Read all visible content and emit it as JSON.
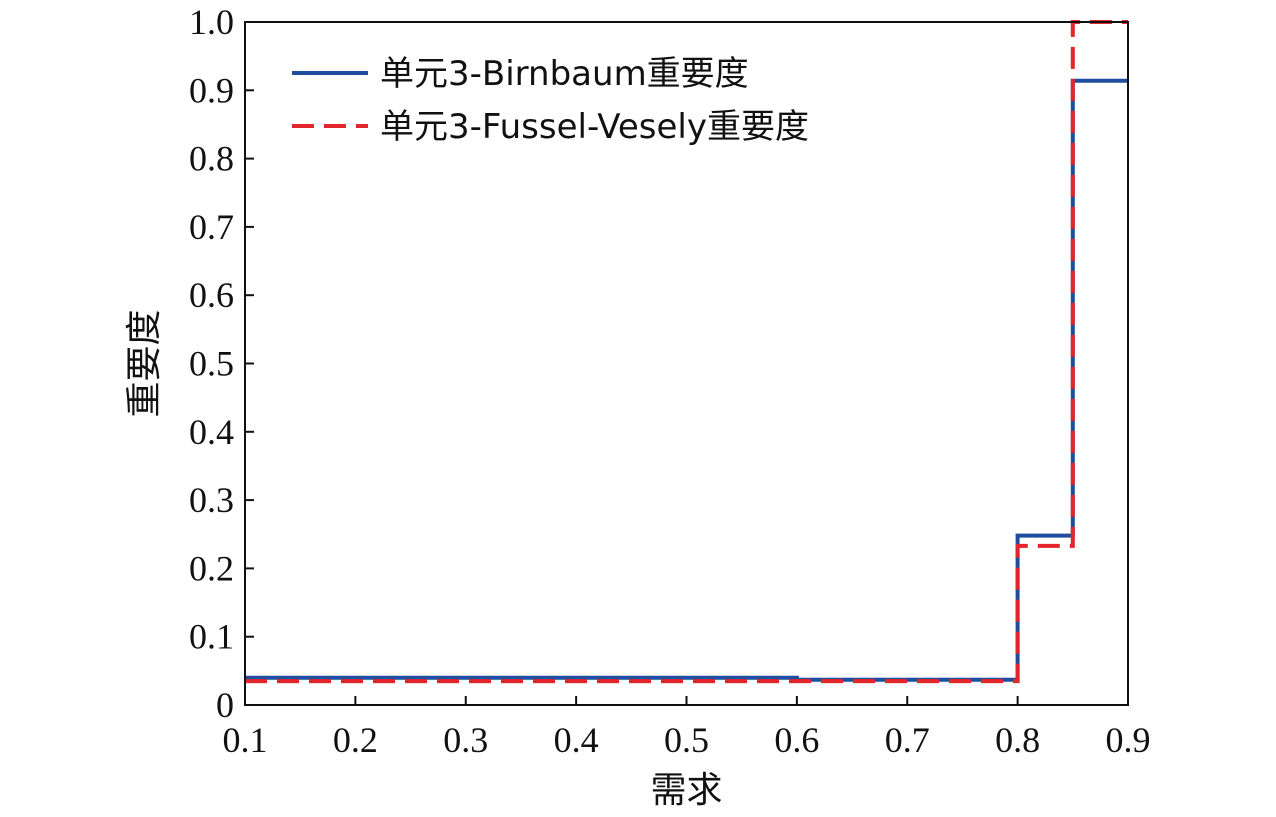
{
  "chart_data": {
    "type": "line",
    "xlabel": "需求",
    "ylabel": "重要度",
    "xlim": [
      0.1,
      0.9
    ],
    "ylim": [
      0,
      1.0
    ],
    "x_ticks": [
      "0.1",
      "0.2",
      "0.3",
      "0.4",
      "0.5",
      "0.6",
      "0.7",
      "0.8",
      "0.9"
    ],
    "y_ticks": [
      "0",
      "0.1",
      "0.2",
      "0.3",
      "0.4",
      "0.5",
      "0.6",
      "0.7",
      "0.8",
      "0.9",
      "1.0"
    ],
    "grid": false,
    "legend_position": "top-left",
    "series": [
      {
        "name": "单元3-Birnbaum重要度",
        "color": "#1f4e9e",
        "style": "solid",
        "step": true,
        "x": [
          0.1,
          0.6,
          0.6,
          0.8,
          0.8,
          0.85,
          0.85,
          0.9
        ],
        "y": [
          0.04,
          0.04,
          0.037,
          0.037,
          0.248,
          0.248,
          0.914,
          0.914
        ]
      },
      {
        "name": "单元3-Fussel-Vesely重要度",
        "color": "#e3262b",
        "style": "dashed",
        "step": true,
        "x": [
          0.1,
          0.8,
          0.8,
          0.85,
          0.85,
          0.9
        ],
        "y": [
          0.035,
          0.035,
          0.233,
          0.233,
          1.0,
          1.0
        ]
      }
    ]
  }
}
